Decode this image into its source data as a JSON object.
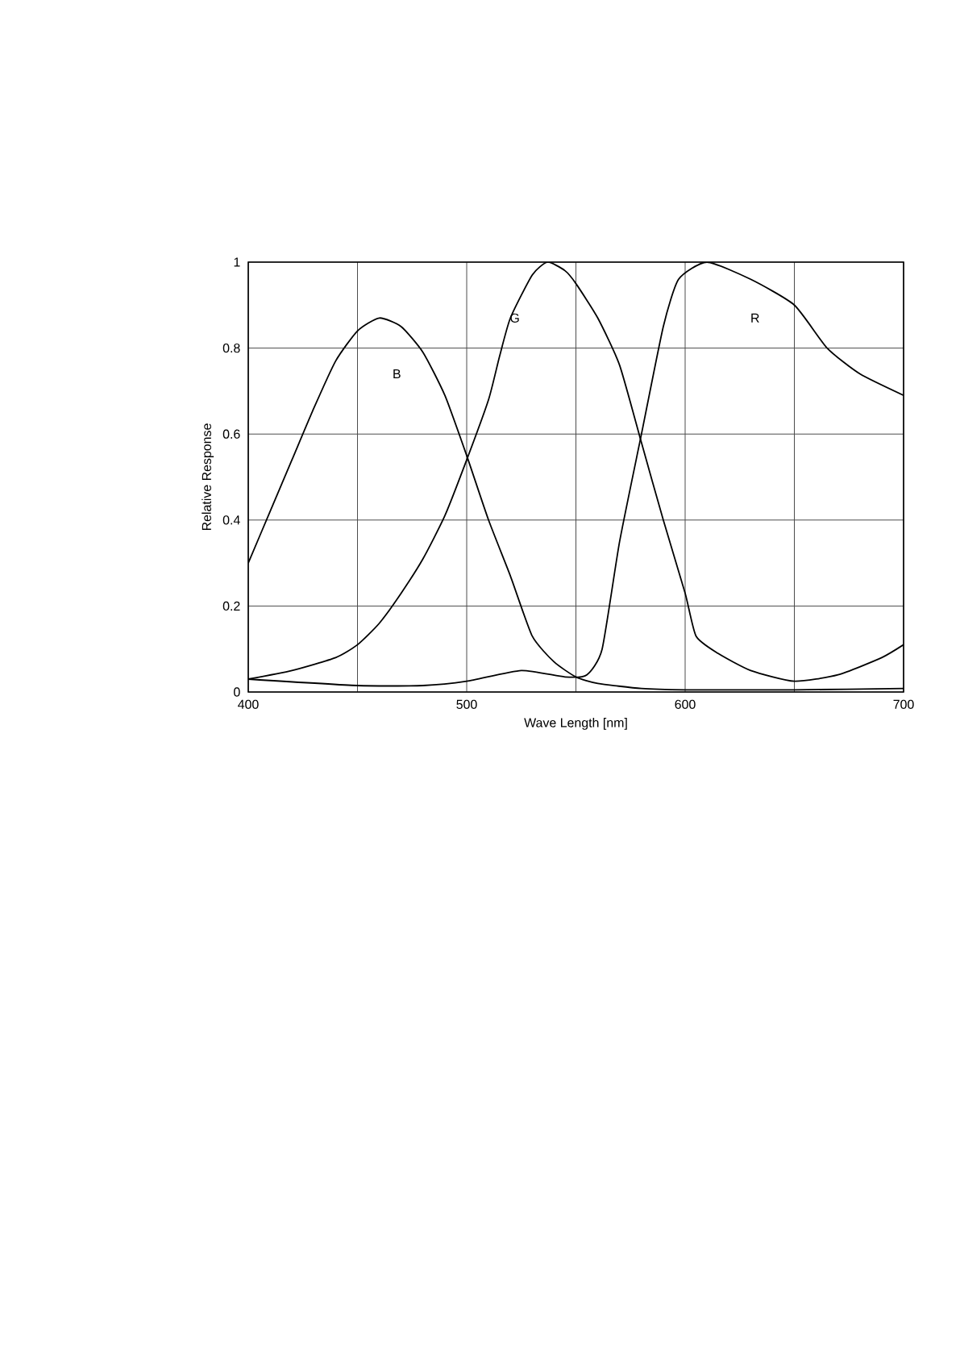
{
  "chart_data": {
    "type": "line",
    "xlabel": "Wave Length [nm]",
    "ylabel": "Relative Response",
    "xlim": [
      400,
      700
    ],
    "xticks": [
      400,
      {
        "value": 450,
        "label": null
      },
      500,
      {
        "value": 550,
        "label": null
      },
      600,
      {
        "value": 650,
        "label": null
      },
      700
    ],
    "ylim": [
      0,
      1
    ],
    "yticks": [
      0,
      0.2,
      0.4,
      0.6,
      0.8,
      1
    ],
    "grid": true,
    "legend": false,
    "marker": "none",
    "line_style": "solid",
    "series": [
      {
        "name": "B",
        "color": "#000000",
        "x": [
          400,
          410,
          420,
          430,
          440,
          450,
          460,
          470,
          480,
          490,
          500,
          510,
          520,
          530,
          540,
          550,
          560,
          580,
          600,
          650,
          700
        ],
        "values": [
          0.3,
          0.42,
          0.54,
          0.66,
          0.77,
          0.84,
          0.87,
          0.85,
          0.79,
          0.69,
          0.55,
          0.4,
          0.27,
          0.13,
          0.07,
          0.035,
          0.02,
          0.008,
          0.005,
          0.005,
          0.008
        ]
      },
      {
        "name": "G",
        "color": "#000000",
        "x": [
          400,
          420,
          440,
          450,
          460,
          470,
          480,
          490,
          500,
          510,
          515,
          520,
          530,
          537,
          545,
          550,
          560,
          570,
          580,
          590,
          600,
          605,
          615,
          630,
          650,
          670,
          690,
          700
        ],
        "values": [
          0.03,
          0.05,
          0.08,
          0.11,
          0.16,
          0.23,
          0.31,
          0.41,
          0.54,
          0.68,
          0.78,
          0.87,
          0.97,
          1.0,
          0.98,
          0.95,
          0.87,
          0.76,
          0.58,
          0.4,
          0.23,
          0.13,
          0.09,
          0.05,
          0.025,
          0.04,
          0.08,
          0.11
        ]
      },
      {
        "name": "R",
        "color": "#000000",
        "x": [
          400,
          450,
          480,
          500,
          525,
          545,
          555,
          562,
          570,
          580,
          590,
          597,
          610,
          630,
          650,
          665,
          680,
          700
        ],
        "values": [
          0.03,
          0.015,
          0.015,
          0.025,
          0.05,
          0.035,
          0.04,
          0.1,
          0.35,
          0.6,
          0.85,
          0.96,
          1.0,
          0.96,
          0.9,
          0.8,
          0.74,
          0.69
        ]
      }
    ]
  }
}
